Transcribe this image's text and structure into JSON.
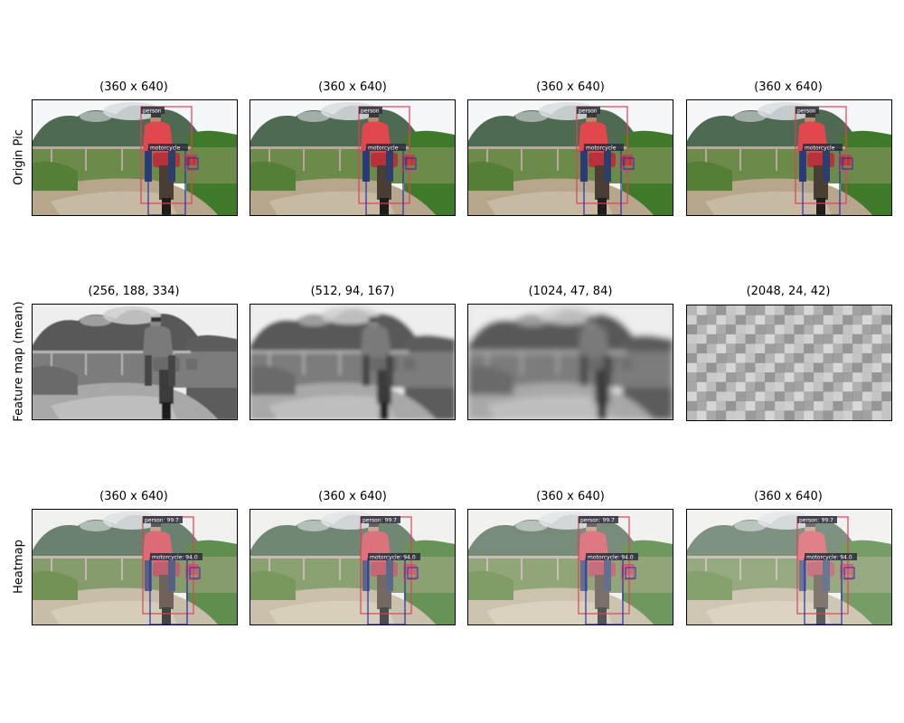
{
  "rows": [
    {
      "label": "Origin Pic",
      "variant": "color",
      "panels": [
        {
          "title": "(360 x 640)",
          "labels": {
            "person": "person",
            "motorcycle": "motorcycle"
          }
        },
        {
          "title": "(360 x 640)",
          "labels": {
            "person": "person",
            "motorcycle": "motorcycle"
          }
        },
        {
          "title": "(360 x 640)",
          "labels": {
            "person": "person",
            "motorcycle": "motorcycle"
          }
        },
        {
          "title": "(360 x 640)",
          "labels": {
            "person": "person",
            "motorcycle": "motorcycle"
          }
        }
      ]
    },
    {
      "label": "Feature map (mean)",
      "variant": "gray",
      "panels": [
        {
          "title": "(256, 188, 334)",
          "blur": 0.5,
          "pixel": 0
        },
        {
          "title": "(512, 94, 167)",
          "blur": 2,
          "pixel": 0
        },
        {
          "title": "(1024, 47, 84)",
          "blur": 3.5,
          "pixel": 0
        },
        {
          "title": "(2048, 24, 42)",
          "blur": 0,
          "pixel": 1
        }
      ]
    },
    {
      "label": "Heatmap",
      "variant": "heat",
      "panels": [
        {
          "title": "(360 x 640)",
          "labels": {
            "person": "person: 99.7",
            "motorcycle": "motorcycle: 94.0"
          }
        },
        {
          "title": "(360 x 640)",
          "labels": {
            "person": "person: 99.7",
            "motorcycle": "motorcycle: 94.0"
          }
        },
        {
          "title": "(360 x 640)",
          "labels": {
            "person": "person: 99.7",
            "motorcycle": "motorcycle: 94.0"
          }
        },
        {
          "title": "(360 x 640)",
          "labels": {
            "person": "person: 99.7",
            "motorcycle": "motorcycle: 94.0"
          }
        }
      ]
    }
  ],
  "colors": {
    "person_box": "#e0405a",
    "motorcycle_box": "#2a2ab0",
    "label_bg": "#2b2b3a",
    "label_text": "#ffffff"
  }
}
